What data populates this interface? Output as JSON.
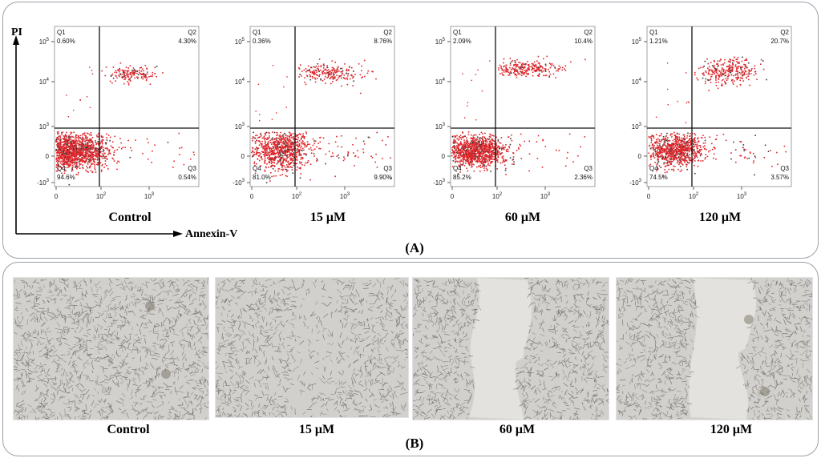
{
  "panel_a": {
    "label": "(A)",
    "y_axis_title": "PI",
    "x_axis_title": "Annexin-V",
    "y_ticks": [
      {
        "base": "10",
        "exp": "5",
        "label": ""
      },
      {
        "base": "10",
        "exp": "4",
        "label": ""
      },
      {
        "base": "10",
        "exp": "3",
        "label": ""
      },
      {
        "base": "",
        "exp": "",
        "label": "0"
      },
      {
        "base": "-10",
        "exp": "3",
        "label": ""
      }
    ],
    "x_ticks": [
      {
        "base": "",
        "exp": "",
        "label": "0"
      },
      {
        "base": "10",
        "exp": "2",
        "label": ""
      },
      {
        "base": "10",
        "exp": "3",
        "label": ""
      }
    ],
    "plots": [
      {
        "condition": "Control",
        "q1": [
          "Q1",
          "0.60%"
        ],
        "q2": [
          "Q2",
          "4.30%"
        ],
        "q3": [
          "Q3",
          "0.54%"
        ],
        "q4": [
          "Q4",
          "94.6%"
        ]
      },
      {
        "condition": "15 μM",
        "q1": [
          "Q1",
          "0.36%"
        ],
        "q2": [
          "Q2",
          "8.76%"
        ],
        "q3": [
          "Q3",
          "9.90%"
        ],
        "q4": [
          "Q4",
          "81.0%"
        ]
      },
      {
        "condition": "60 μM",
        "q1": [
          "Q1",
          "2.09%"
        ],
        "q2": [
          "Q2",
          "10.4%"
        ],
        "q3": [
          "Q3",
          "2.36%"
        ],
        "q4": [
          "Q4",
          "85.2%"
        ]
      },
      {
        "condition": "120 μM",
        "q1": [
          "Q1",
          "1.21%"
        ],
        "q2": [
          "Q2",
          "20.7%"
        ],
        "q3": [
          "Q3",
          "3.57%"
        ],
        "q4": [
          "Q4",
          "74.5%"
        ]
      }
    ],
    "colors": {
      "dots": "#e0262b",
      "dark_dots": "#3a3a3a"
    }
  },
  "panel_b": {
    "label": "(B)",
    "images": [
      {
        "condition": "Control"
      },
      {
        "condition": "15 μM"
      },
      {
        "condition": "60 μM"
      },
      {
        "condition": "120 μM"
      }
    ]
  }
}
